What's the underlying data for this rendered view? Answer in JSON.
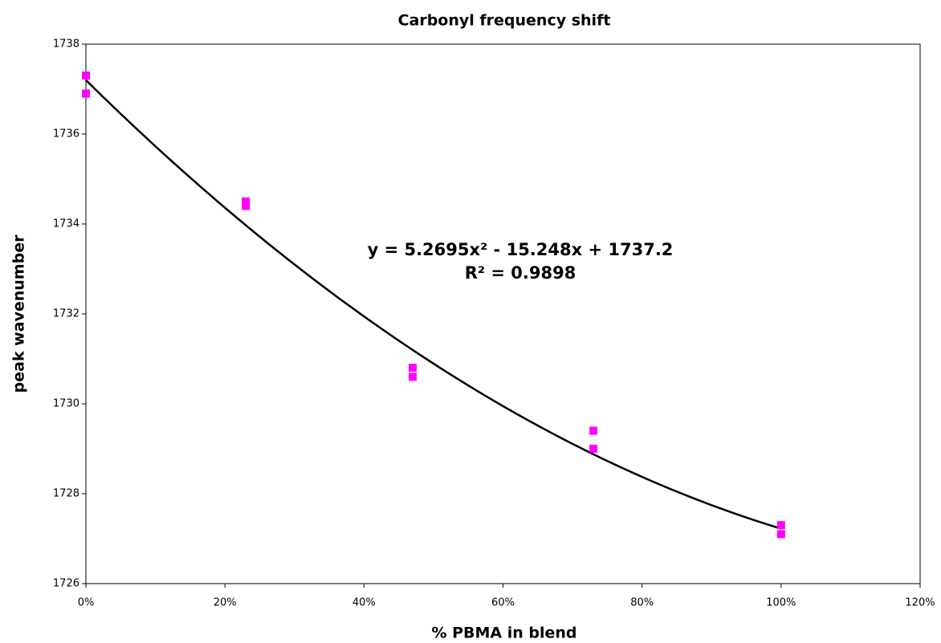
{
  "chart_data": {
    "type": "scatter",
    "title": "Carbonyl frequency shift",
    "x_label": "% PBMA in blend",
    "y_label": "peak wavenumber",
    "series": [
      {
        "name": "peak wavenumber",
        "color": "#ff00ff",
        "x": [
          0,
          0,
          0.23,
          0.23,
          0.47,
          0.47,
          0.73,
          0.73,
          1.0,
          1.0
        ],
        "values": [
          1737.3,
          1736.9,
          1734.5,
          1734.4,
          1730.8,
          1730.6,
          1729.4,
          1729.0,
          1727.3,
          1727.1
        ]
      }
    ],
    "trendline": {
      "type": "polynomial",
      "color": "#000000",
      "coefficients": [
        5.2695,
        -15.248,
        1737.2
      ]
    },
    "annotations": [
      "y = 5.2695x² - 15.248x + 1737.2",
      "R² = 0.9898"
    ],
    "xlim": [
      0,
      1.2
    ],
    "xticks": [
      {
        "value": 0,
        "label": "0%"
      },
      {
        "value": 0.2,
        "label": "20%"
      },
      {
        "value": 0.4,
        "label": "40%"
      },
      {
        "value": 0.6,
        "label": "60%"
      },
      {
        "value": 0.8,
        "label": "80%"
      },
      {
        "value": 1.0,
        "label": "100%"
      },
      {
        "value": 1.2,
        "label": "120%"
      }
    ],
    "ylim": [
      1726,
      1738
    ],
    "yticks": [
      1726,
      1728,
      1730,
      1732,
      1734,
      1736,
      1738
    ],
    "grid": false
  }
}
